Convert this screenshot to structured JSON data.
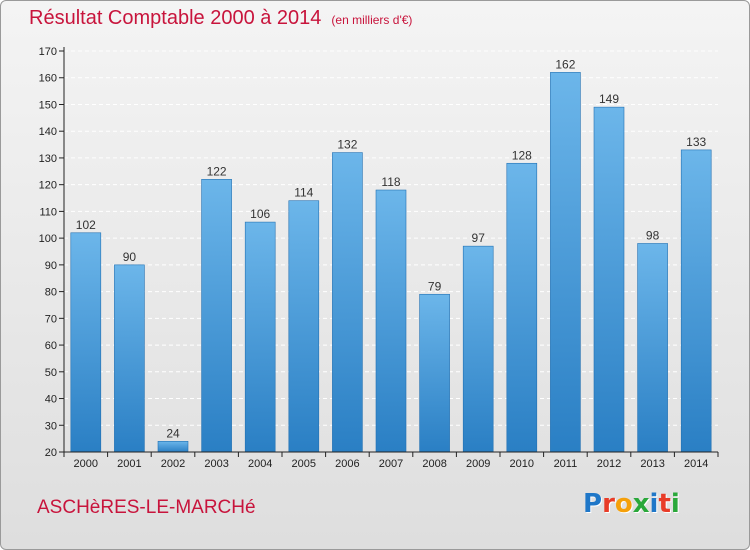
{
  "page": {
    "title": "Résultat Comptable 2000 à 2014",
    "subtitle": "(en milliers d'€)",
    "commune": "ASCHèRES-LE-MARCHé",
    "logo_text": "Proxiti",
    "logo_colors": [
      "#1f77c8",
      "#e83c28",
      "#f5a00a",
      "#2aa83a",
      "#1f77c8",
      "#e83c28",
      "#2aa83a"
    ]
  },
  "colors": {
    "title": "#c8143c",
    "bar_top": "#6cb6ea",
    "bar_bottom": "#2a7fc4",
    "bar_edge": "#2371b2",
    "axis": "#222222",
    "grid": "#ffffff"
  },
  "chart_data": {
    "type": "bar",
    "title": "Résultat Comptable 2000 à 2014",
    "ylabel": "en milliers d'€",
    "xlabel": "",
    "categories": [
      "2000",
      "2001",
      "2002",
      "2003",
      "2004",
      "2005",
      "2006",
      "2007",
      "2008",
      "2009",
      "2010",
      "2011",
      "2012",
      "2013",
      "2014"
    ],
    "values": [
      102,
      90,
      24,
      122,
      106,
      114,
      132,
      118,
      79,
      97,
      128,
      162,
      149,
      98,
      133
    ],
    "ylim": [
      20,
      170
    ],
    "yticks": [
      20,
      30,
      40,
      50,
      60,
      70,
      80,
      90,
      100,
      110,
      120,
      130,
      140,
      150,
      160,
      170
    ],
    "grid": "horizontal dashed",
    "legend": "none"
  }
}
